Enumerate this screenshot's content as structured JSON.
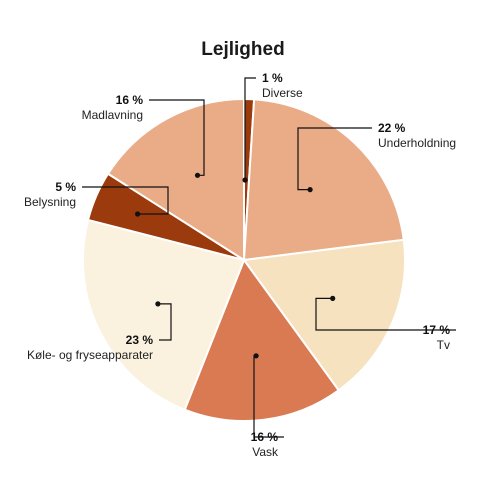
{
  "chart_data": {
    "type": "pie",
    "title": "Lejlighed",
    "unit": "%",
    "slices": [
      {
        "label": "Diverse",
        "value": 1,
        "color": "#9b3a0c"
      },
      {
        "label": "Underholdning",
        "value": 22,
        "color": "#eaac86"
      },
      {
        "label": "Tv",
        "value": 17,
        "color": "#f7e2bf"
      },
      {
        "label": "Vask",
        "value": 16,
        "color": "#d97a53"
      },
      {
        "label": "Køle- og fryseapparater",
        "value": 23,
        "color": "#faf1df"
      },
      {
        "label": "Belysning",
        "value": 5,
        "color": "#9b3a0c"
      },
      {
        "label": "Madlavning",
        "value": 16,
        "color": "#eaac86"
      }
    ]
  }
}
